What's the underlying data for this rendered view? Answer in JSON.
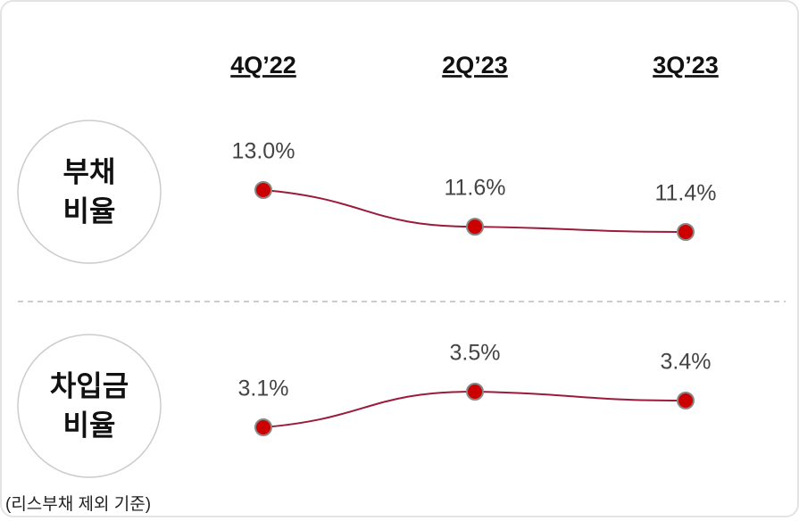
{
  "columns": [
    "4Q’22",
    "2Q’23",
    "3Q’23"
  ],
  "chart_data": [
    {
      "type": "line",
      "title": [
        "부채",
        "비율"
      ],
      "values": [
        13.0,
        11.6,
        11.4
      ],
      "value_labels": [
        "13.0%",
        "11.6%",
        "11.4%"
      ],
      "color": "#9b1b3a",
      "marker_color": "#cc0000"
    },
    {
      "type": "line",
      "title": [
        "차입금",
        "비율"
      ],
      "values": [
        3.1,
        3.5,
        3.4
      ],
      "value_labels": [
        "3.1%",
        "3.5%",
        "3.4%"
      ],
      "color": "#9b1b3a",
      "marker_color": "#cc0000"
    }
  ],
  "footnote": "(리스부채 제외 기준)"
}
